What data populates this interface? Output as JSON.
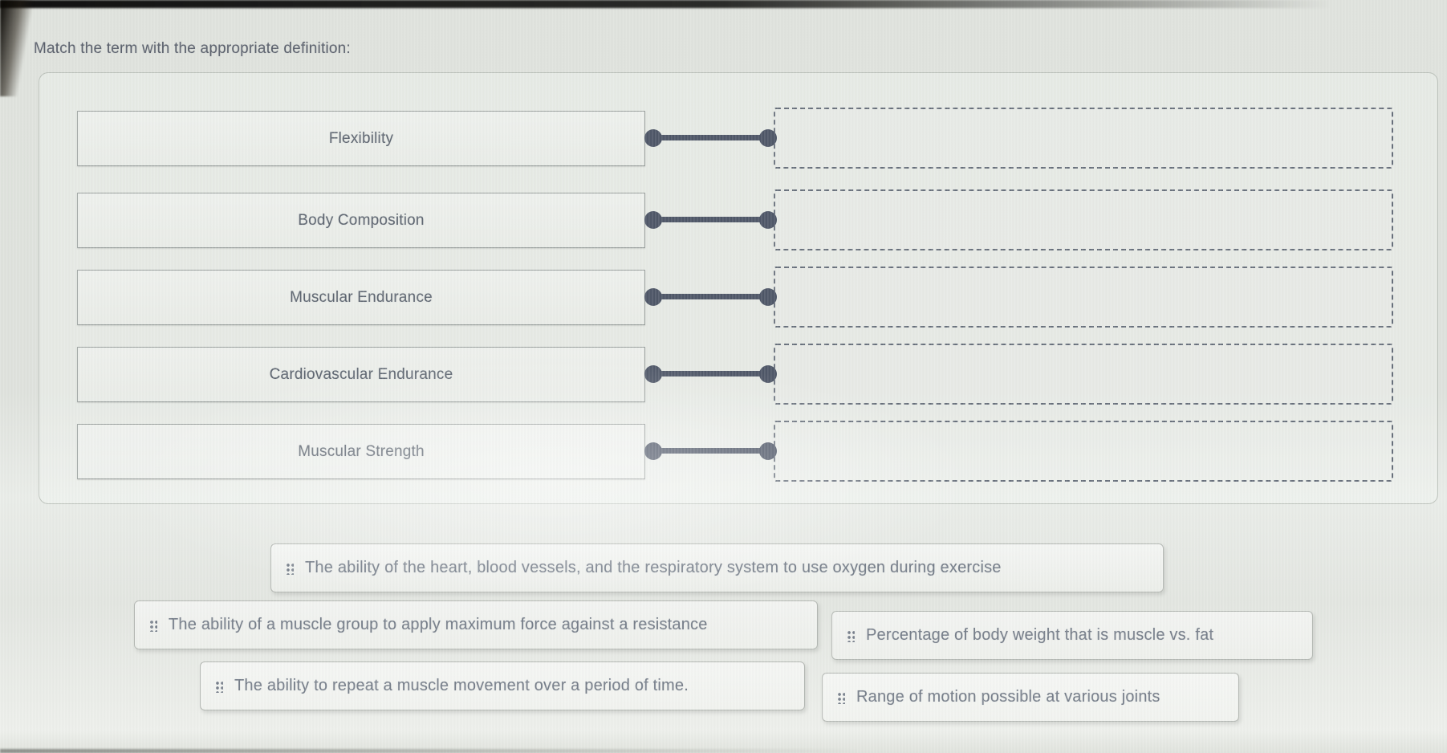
{
  "prompt": "Match the term with the appropriate definition:",
  "matching": {
    "terms": [
      {
        "label": "Flexibility"
      },
      {
        "label": "Body Composition"
      },
      {
        "label": "Muscular Endurance"
      },
      {
        "label": "Cardiovascular Endurance"
      },
      {
        "label": "Muscular Strength"
      }
    ],
    "drop_zones_empty": true
  },
  "answer_bank": [
    {
      "text": "The ability of the heart, blood vessels, and the respiratory system to use oxygen during exercise"
    },
    {
      "text": "The ability of a muscle group to apply maximum force against a resistance"
    },
    {
      "text": "Percentage of body weight that is muscle vs. fat"
    },
    {
      "text": "The ability to repeat a muscle movement over a period of time."
    },
    {
      "text": "Range of motion possible at various joints"
    }
  ],
  "icons": {
    "drag_handle": "grip-dots-2x3",
    "connector_endpoint": "filled-circle"
  },
  "colors": {
    "connector": "#4d5566",
    "term_text": "#5c646f",
    "chip_text": "#747c88",
    "drop_zone_border": "#666e7a",
    "background": "#dfe2dd"
  }
}
